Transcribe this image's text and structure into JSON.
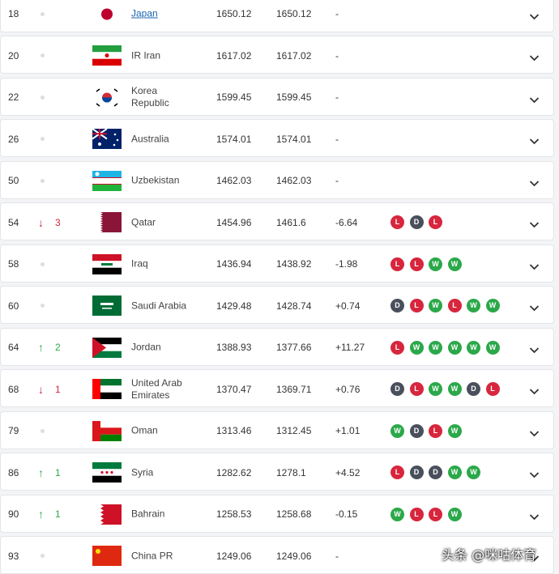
{
  "rows": [
    {
      "rank": "18",
      "trend": null,
      "change": null,
      "country": "Japan",
      "points": "1650.12",
      "previous": "1650.12",
      "diff": "-",
      "form": []
    },
    {
      "rank": "20",
      "trend": null,
      "change": null,
      "country": "IR Iran",
      "points": "1617.02",
      "previous": "1617.02",
      "diff": "-",
      "form": []
    },
    {
      "rank": "22",
      "trend": null,
      "change": null,
      "country": "Korea Republic",
      "points": "1599.45",
      "previous": "1599.45",
      "diff": "-",
      "form": []
    },
    {
      "rank": "26",
      "trend": null,
      "change": null,
      "country": "Australia",
      "points": "1574.01",
      "previous": "1574.01",
      "diff": "-",
      "form": []
    },
    {
      "rank": "50",
      "trend": null,
      "change": null,
      "country": "Uzbekistan",
      "points": "1462.03",
      "previous": "1462.03",
      "diff": "-",
      "form": []
    },
    {
      "rank": "54",
      "trend": "down",
      "change": "3",
      "country": "Qatar",
      "points": "1454.96",
      "previous": "1461.6",
      "diff": "-6.64",
      "form": [
        "L",
        "D",
        "L"
      ]
    },
    {
      "rank": "58",
      "trend": null,
      "change": null,
      "country": "Iraq",
      "points": "1436.94",
      "previous": "1438.92",
      "diff": "-1.98",
      "form": [
        "L",
        "L",
        "W",
        "W"
      ]
    },
    {
      "rank": "60",
      "trend": null,
      "change": null,
      "country": "Saudi Arabia",
      "points": "1429.48",
      "previous": "1428.74",
      "diff": "+0.74",
      "form": [
        "D",
        "L",
        "W",
        "L",
        "W",
        "W"
      ]
    },
    {
      "rank": "64",
      "trend": "up",
      "change": "2",
      "country": "Jordan",
      "points": "1388.93",
      "previous": "1377.66",
      "diff": "+11.27",
      "form": [
        "L",
        "W",
        "W",
        "W",
        "W",
        "W"
      ]
    },
    {
      "rank": "68",
      "trend": "down",
      "change": "1",
      "country": "United Arab Emirates",
      "points": "1370.47",
      "previous": "1369.71",
      "diff": "+0.76",
      "form": [
        "D",
        "L",
        "W",
        "W",
        "D",
        "L"
      ]
    },
    {
      "rank": "79",
      "trend": null,
      "change": null,
      "country": "Oman",
      "points": "1313.46",
      "previous": "1312.45",
      "diff": "+1.01",
      "form": [
        "W",
        "D",
        "L",
        "W"
      ]
    },
    {
      "rank": "86",
      "trend": "up",
      "change": "1",
      "country": "Syria",
      "points": "1282.62",
      "previous": "1278.1",
      "diff": "+4.52",
      "form": [
        "L",
        "D",
        "D",
        "W",
        "W"
      ]
    },
    {
      "rank": "90",
      "trend": "up",
      "change": "1",
      "country": "Bahrain",
      "points": "1258.53",
      "previous": "1258.68",
      "diff": "-0.15",
      "form": [
        "W",
        "L",
        "L",
        "W"
      ]
    },
    {
      "rank": "93",
      "trend": null,
      "change": null,
      "country": "China PR",
      "points": "1249.06",
      "previous": "1249.06",
      "diff": "-",
      "form": []
    }
  ],
  "watermark": "头条 @咪咕体育"
}
